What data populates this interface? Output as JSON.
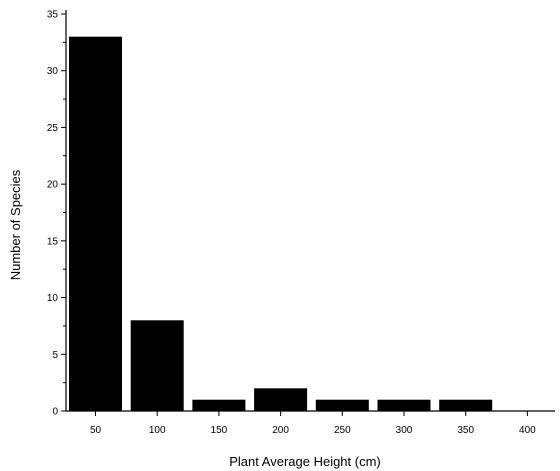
{
  "chart_data": {
    "type": "bar",
    "categories": [
      "50",
      "100",
      "150",
      "200",
      "250",
      "300",
      "350",
      "400"
    ],
    "values": [
      33,
      8,
      1,
      2,
      1,
      1,
      1,
      0
    ],
    "title": "",
    "xlabel": "Plant Average Height (cm)",
    "ylabel": "Number of Species",
    "ylim": [
      0,
      35
    ],
    "yticks": [
      0,
      5,
      10,
      15,
      20,
      25,
      30,
      35
    ],
    "grid": false,
    "bar_color": "#000000"
  }
}
